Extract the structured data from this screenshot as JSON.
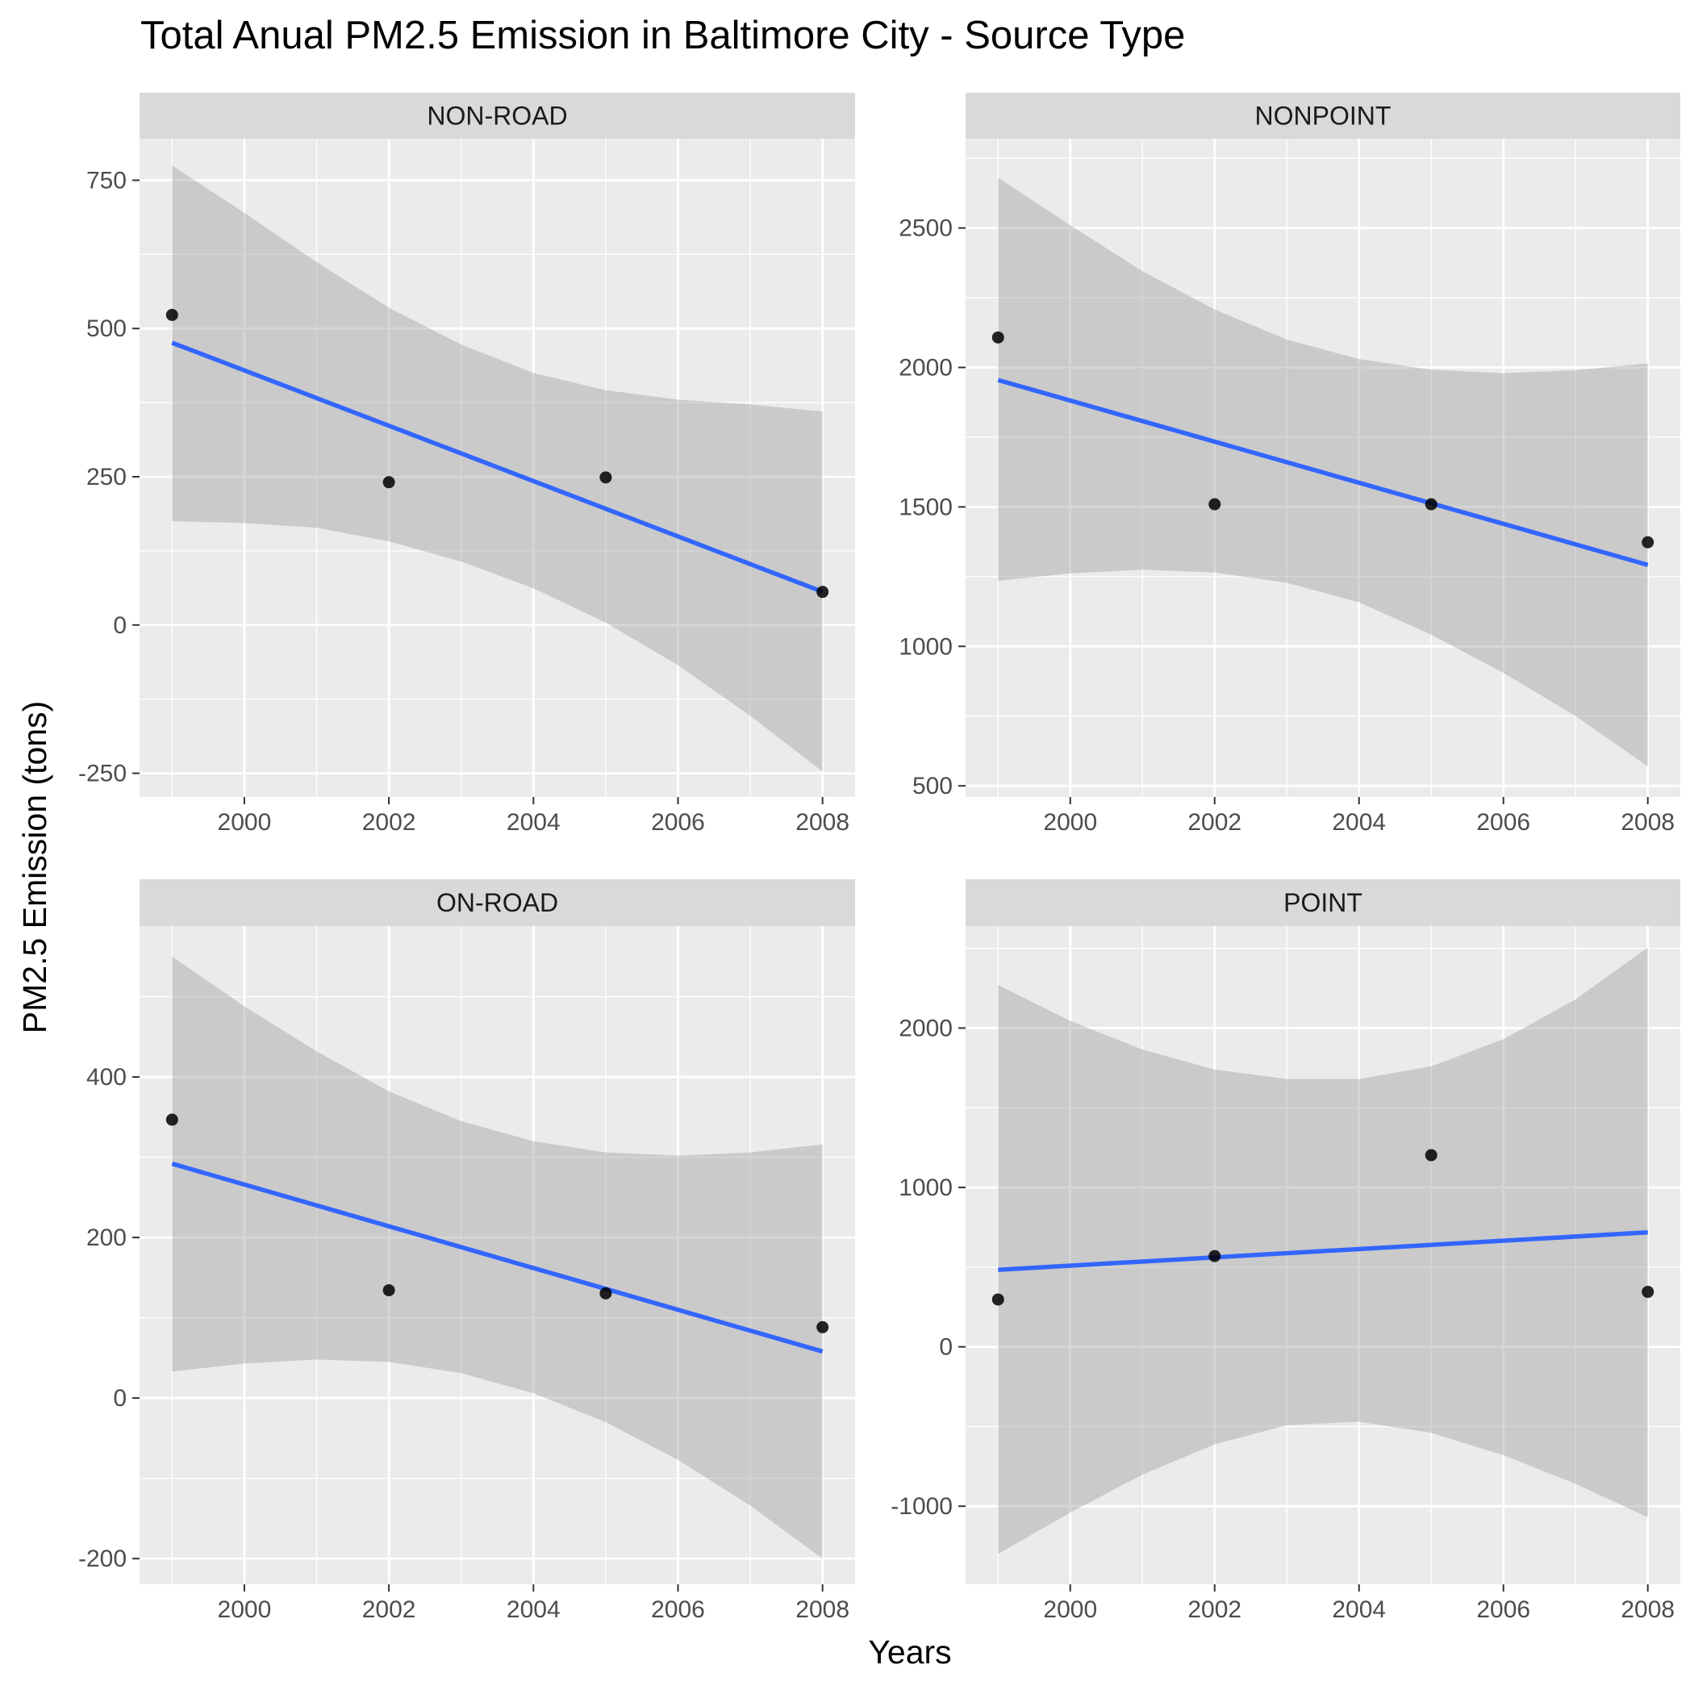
{
  "chart_data": {
    "type": "scatter",
    "title": "Total Anual PM2.5 Emission in Baltimore City - Source Type",
    "xlabel": "Years",
    "ylabel": "PM2.5 Emission (tons)",
    "grid": true,
    "x_ticks": [
      2000,
      2002,
      2004,
      2006,
      2008
    ],
    "colors": {
      "panel_bg": "#ebebeb",
      "strip_bg": "#d9d9d9",
      "grid": "#ffffff",
      "point": "#000000",
      "fit_line": "#3366ff",
      "confidence_band": "#999999"
    },
    "panels": [
      {
        "name": "NON-ROAD",
        "x": [
          1999,
          2002,
          2005,
          2008
        ],
        "y": [
          522.9,
          240.8,
          248.9,
          55.8
        ],
        "ylim": [
          -290,
          820
        ],
        "y_ticks": [
          -250,
          0,
          250,
          500,
          750
        ],
        "y_tick_labels": [
          "-250",
          "0",
          "250",
          "500",
          "750"
        ],
        "fit": [
          476,
          56
        ],
        "ci_upper": [
          [
            1999,
            775
          ],
          [
            2000,
            695
          ],
          [
            2001,
            612
          ],
          [
            2002,
            535
          ],
          [
            2003,
            473
          ],
          [
            2004,
            425
          ],
          [
            2005,
            396
          ],
          [
            2006,
            380
          ],
          [
            2007,
            372
          ],
          [
            2008,
            360
          ]
        ],
        "ci_lower": [
          [
            1999,
            175
          ],
          [
            2000,
            172
          ],
          [
            2001,
            164
          ],
          [
            2002,
            141
          ],
          [
            2003,
            107
          ],
          [
            2004,
            62
          ],
          [
            2005,
            4
          ],
          [
            2006,
            -68
          ],
          [
            2007,
            -153
          ],
          [
            2008,
            -247
          ]
        ]
      },
      {
        "name": "NONPOINT",
        "x": [
          1999,
          2002,
          2005,
          2008
        ],
        "y": [
          2107.6,
          1509.5,
          1509.5,
          1373.2
        ],
        "ylim": [
          460,
          2820
        ],
        "y_ticks": [
          500,
          1000,
          1500,
          2000,
          2500
        ],
        "y_tick_labels": [
          "500",
          "1000",
          "1500",
          "2000",
          "2500"
        ],
        "fit": [
          1955,
          1292
        ],
        "ci_upper": [
          [
            1999,
            2680
          ],
          [
            2000,
            2510
          ],
          [
            2001,
            2345
          ],
          [
            2002,
            2208
          ],
          [
            2003,
            2100
          ],
          [
            2004,
            2030
          ],
          [
            2005,
            1992
          ],
          [
            2006,
            1980
          ],
          [
            2007,
            1990
          ],
          [
            2008,
            2015
          ]
        ],
        "ci_lower": [
          [
            1999,
            1235
          ],
          [
            2000,
            1262
          ],
          [
            2001,
            1275
          ],
          [
            2002,
            1265
          ],
          [
            2003,
            1228
          ],
          [
            2004,
            1158
          ],
          [
            2005,
            1042
          ],
          [
            2006,
            905
          ],
          [
            2007,
            750
          ],
          [
            2008,
            570
          ]
        ]
      },
      {
        "name": "ON-ROAD",
        "x": [
          1999,
          2002,
          2005,
          2008
        ],
        "y": [
          346.8,
          134.3,
          130.4,
          88.3
        ],
        "ylim": [
          -232,
          588
        ],
        "y_ticks": [
          -200,
          0,
          200,
          400
        ],
        "y_tick_labels": [
          "-200",
          "0",
          "200",
          "400"
        ],
        "fit": [
          292,
          58
        ],
        "ci_upper": [
          [
            1999,
            550
          ],
          [
            2000,
            488
          ],
          [
            2001,
            432
          ],
          [
            2002,
            382
          ],
          [
            2003,
            345
          ],
          [
            2004,
            320
          ],
          [
            2005,
            306
          ],
          [
            2006,
            302
          ],
          [
            2007,
            306
          ],
          [
            2008,
            316
          ]
        ],
        "ci_lower": [
          [
            1999,
            33
          ],
          [
            2000,
            43
          ],
          [
            2001,
            48
          ],
          [
            2002,
            45
          ],
          [
            2003,
            31
          ],
          [
            2004,
            6
          ],
          [
            2005,
            -30
          ],
          [
            2006,
            -77
          ],
          [
            2007,
            -134
          ],
          [
            2008,
            -200
          ]
        ]
      },
      {
        "name": "POINT",
        "x": [
          1999,
          2002,
          2005,
          2008
        ],
        "y": [
          296.8,
          569.3,
          1202.5,
          344.9
        ],
        "ylim": [
          -1490,
          2640
        ],
        "y_ticks": [
          -1000,
          0,
          1000,
          2000
        ],
        "y_tick_labels": [
          "-1000",
          "0",
          "1000",
          "2000"
        ],
        "fit": [
          483,
          718
        ],
        "ci_upper": [
          [
            1999,
            2270
          ],
          [
            2000,
            2045
          ],
          [
            2001,
            1865
          ],
          [
            2002,
            1740
          ],
          [
            2003,
            1680
          ],
          [
            2004,
            1680
          ],
          [
            2005,
            1760
          ],
          [
            2006,
            1930
          ],
          [
            2007,
            2180
          ],
          [
            2008,
            2505
          ]
        ],
        "ci_lower": [
          [
            1999,
            -1300
          ],
          [
            2000,
            -1040
          ],
          [
            2001,
            -802
          ],
          [
            2002,
            -612
          ],
          [
            2003,
            -492
          ],
          [
            2004,
            -470
          ],
          [
            2005,
            -540
          ],
          [
            2006,
            -680
          ],
          [
            2007,
            -860
          ],
          [
            2008,
            -1070
          ]
        ]
      }
    ]
  }
}
